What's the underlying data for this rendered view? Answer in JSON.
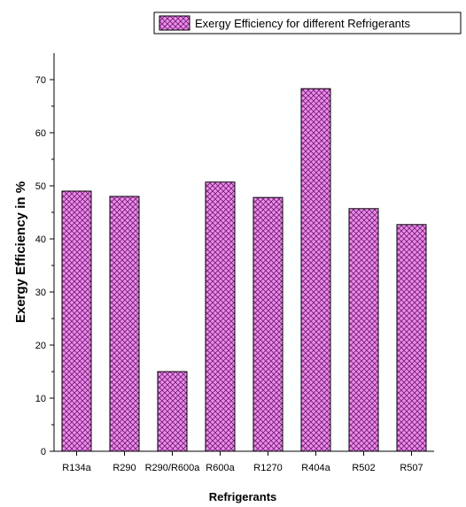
{
  "chart_data": {
    "type": "bar",
    "categories": [
      "R134a",
      "R290",
      "R290/R600a",
      "R600a",
      "R1270",
      "R404a",
      "R502",
      "R507"
    ],
    "series": [
      {
        "name": "Exergy Efficiency for different Refrigerants",
        "values": [
          49.0,
          48.0,
          15.0,
          50.7,
          47.8,
          68.3,
          45.7,
          42.7
        ]
      }
    ],
    "xlabel": "Refrigerants",
    "ylabel": "Exergy Efficiency in %",
    "ylim": [
      0,
      75
    ],
    "yticks": [
      0,
      10,
      20,
      30,
      40,
      50,
      60,
      70
    ],
    "legend_position": "top-right",
    "grid": false,
    "bar_fill_color": "#e890e8",
    "bar_hatch_color": "#7a1a7a",
    "bar_edge_color": "#000000"
  }
}
